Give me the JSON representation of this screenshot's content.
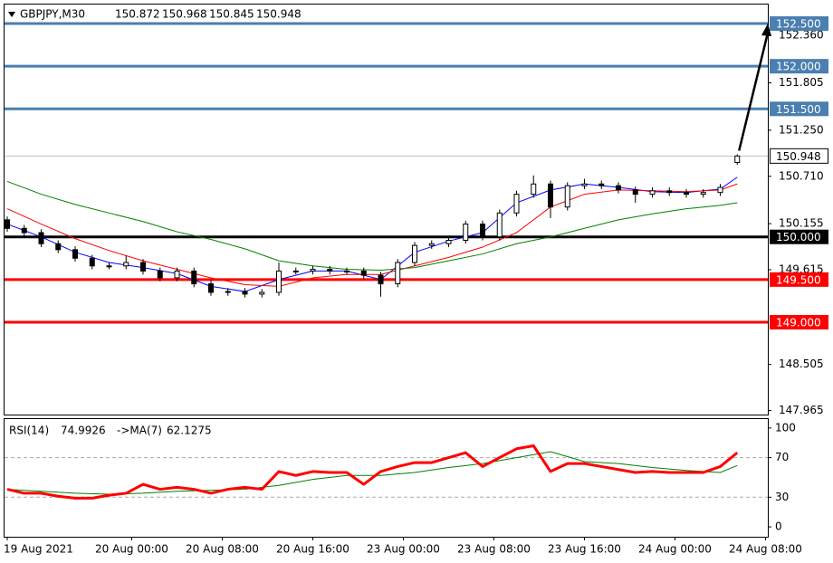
{
  "chart_data": {
    "type": "candlestick",
    "symbol": "GBPJPY,M30",
    "x": [
      0,
      3,
      6,
      9,
      12,
      15,
      18,
      21,
      24,
      27,
      30,
      33,
      36,
      39,
      42,
      45,
      48,
      51,
      54,
      57,
      60,
      63,
      66,
      69,
      72,
      75,
      78,
      81,
      84,
      87,
      90,
      93,
      96,
      99,
      102,
      105,
      108,
      111,
      114,
      117,
      120,
      123,
      126,
      129
    ],
    "candles": [
      [
        150.2,
        150.24,
        150.06,
        150.1
      ],
      [
        150.1,
        150.14,
        150.01,
        150.05
      ],
      [
        150.05,
        150.09,
        149.88,
        149.92
      ],
      [
        149.92,
        149.96,
        149.81,
        149.85
      ],
      [
        149.85,
        149.89,
        149.71,
        149.75
      ],
      [
        149.75,
        149.79,
        149.62,
        149.66
      ],
      [
        149.66,
        149.7,
        149.62,
        149.66
      ],
      [
        149.66,
        149.78,
        149.62,
        149.7
      ],
      [
        149.7,
        149.74,
        149.56,
        149.6
      ],
      [
        149.6,
        149.64,
        149.48,
        149.52
      ],
      [
        149.52,
        149.64,
        149.48,
        149.6
      ],
      [
        149.6,
        149.64,
        149.41,
        149.45
      ],
      [
        149.45,
        149.49,
        149.31,
        149.35
      ],
      [
        149.35,
        149.4,
        149.31,
        149.36
      ],
      [
        149.36,
        149.4,
        149.29,
        149.33
      ],
      [
        149.33,
        149.39,
        149.29,
        149.35
      ],
      [
        149.35,
        149.7,
        149.31,
        149.6
      ],
      [
        149.6,
        149.64,
        149.56,
        149.6
      ],
      [
        149.6,
        149.66,
        149.56,
        149.62
      ],
      [
        149.62,
        149.66,
        149.56,
        149.6
      ],
      [
        149.6,
        149.64,
        149.56,
        149.6
      ],
      [
        149.6,
        149.64,
        149.51,
        149.55
      ],
      [
        149.55,
        149.59,
        149.3,
        149.45
      ],
      [
        149.45,
        149.74,
        149.41,
        149.7
      ],
      [
        149.7,
        149.94,
        149.66,
        149.9
      ],
      [
        149.9,
        149.96,
        149.86,
        149.92
      ],
      [
        149.92,
        150.0,
        149.88,
        149.96
      ],
      [
        149.96,
        150.19,
        149.92,
        150.15
      ],
      [
        150.15,
        150.19,
        149.96,
        150.0
      ],
      [
        150.0,
        150.32,
        149.96,
        150.28
      ],
      [
        150.28,
        150.54,
        150.24,
        150.5
      ],
      [
        150.5,
        150.72,
        150.46,
        150.62
      ],
      [
        150.62,
        150.66,
        150.22,
        150.35
      ],
      [
        150.35,
        150.64,
        150.31,
        150.6
      ],
      [
        150.6,
        150.68,
        150.56,
        150.62
      ],
      [
        150.62,
        150.66,
        150.56,
        150.6
      ],
      [
        150.6,
        150.64,
        150.51,
        150.55
      ],
      [
        150.55,
        150.59,
        150.4,
        150.5
      ],
      [
        150.5,
        150.58,
        150.46,
        150.54
      ],
      [
        150.54,
        150.58,
        150.48,
        150.52
      ],
      [
        150.52,
        150.56,
        150.46,
        150.5
      ],
      [
        150.5,
        150.56,
        150.46,
        150.52
      ],
      [
        150.52,
        150.62,
        150.48,
        150.58
      ],
      [
        150.872,
        150.968,
        150.845,
        150.948
      ]
    ],
    "ma_x": [
      0,
      6,
      12,
      18,
      24,
      30,
      36,
      42,
      48,
      54,
      60,
      66,
      72,
      78,
      84,
      90,
      96,
      102,
      108,
      114,
      120,
      126,
      129
    ],
    "ma": [
      {
        "color": "#0000ff",
        "values": [
          150.15,
          150.0,
          149.82,
          149.7,
          149.64,
          149.57,
          149.42,
          149.36,
          149.5,
          149.6,
          149.6,
          149.5,
          149.82,
          149.95,
          150.05,
          150.4,
          150.55,
          150.62,
          150.58,
          150.53,
          150.52,
          150.56,
          150.7
        ]
      },
      {
        "color": "#ff0000",
        "values": [
          150.33,
          150.15,
          149.98,
          149.84,
          149.72,
          149.62,
          149.52,
          149.44,
          149.42,
          149.52,
          149.56,
          149.56,
          149.66,
          149.76,
          149.88,
          150.05,
          150.35,
          150.5,
          150.55,
          150.54,
          150.53,
          150.55,
          150.62
        ]
      },
      {
        "color": "#008000",
        "values": [
          150.65,
          150.5,
          150.38,
          150.28,
          150.18,
          150.06,
          149.97,
          149.86,
          149.72,
          149.66,
          149.62,
          149.61,
          149.64,
          149.72,
          149.8,
          149.92,
          150.0,
          150.1,
          150.2,
          150.27,
          150.33,
          150.37,
          150.4
        ]
      }
    ],
    "levels": [
      {
        "value": 152.5,
        "label": "152.500",
        "color": "#4a7fb0"
      },
      {
        "value": 152.0,
        "label": "152.000",
        "color": "#4a7fb0"
      },
      {
        "value": 151.5,
        "label": "151.500",
        "color": "#4a7fb0"
      },
      {
        "value": 150.0,
        "label": "150.000",
        "color": "#000000"
      },
      {
        "value": 149.5,
        "label": "149.500",
        "color": "#ff0000"
      },
      {
        "value": 149.0,
        "label": "149.000",
        "color": "#ff0000"
      }
    ],
    "xlim": [
      -0.48,
      134.4
    ],
    "ylim": [
      147.918,
      152.723
    ],
    "yticks": [
      {
        "value": 152.36,
        "label": "152.360"
      },
      {
        "value": 151.805,
        "label": "151.805"
      },
      {
        "value": 151.25,
        "label": "151.250"
      },
      {
        "value": 150.71,
        "label": "150.710"
      },
      {
        "value": 150.155,
        "label": "150.155"
      },
      {
        "value": 149.615,
        "label": "149.615"
      },
      {
        "value": 148.505,
        "label": "148.505"
      },
      {
        "value": 147.965,
        "label": "147.965"
      }
    ],
    "xticks": [
      {
        "value": 0,
        "label": "19 Aug 2021"
      },
      {
        "value": 22,
        "label": "20 Aug 00:00"
      },
      {
        "value": 38,
        "label": "20 Aug 08:00"
      },
      {
        "value": 54,
        "label": "20 Aug 16:00"
      },
      {
        "value": 70,
        "label": "23 Aug 00:00"
      },
      {
        "value": 86,
        "label": "23 Aug 08:00"
      },
      {
        "value": 102,
        "label": "23 Aug 16:00"
      },
      {
        "value": 118,
        "label": "24 Aug 00:00"
      },
      {
        "value": 134,
        "label": "24 Aug 08:00"
      }
    ],
    "rsi": {
      "name": "RSI(14)",
      "value": 74.9926,
      "ma_name": "->MA(7)",
      "ma_value": 62.1275,
      "color": "#ff0000",
      "ma_color": "#008000",
      "values": [
        38,
        34,
        34,
        31,
        29,
        29,
        32,
        34,
        43,
        38,
        40,
        38,
        34,
        38,
        40,
        38,
        56,
        52,
        56,
        55,
        55,
        43,
        56,
        61,
        65,
        65,
        70,
        75,
        61,
        70,
        79,
        82,
        56,
        64,
        64,
        61,
        58,
        55,
        56,
        55,
        55,
        55,
        61,
        75
      ],
      "ma_values": [
        38,
        36,
        34,
        33,
        34,
        36,
        37,
        38,
        42,
        48,
        52,
        52,
        55,
        60,
        64,
        70,
        76,
        66,
        64,
        60,
        57,
        55,
        62
      ],
      "ylim": [
        -10,
        109
      ],
      "yticks": [
        100,
        70,
        30,
        0
      ],
      "levels": [
        70,
        30
      ]
    }
  }
}
